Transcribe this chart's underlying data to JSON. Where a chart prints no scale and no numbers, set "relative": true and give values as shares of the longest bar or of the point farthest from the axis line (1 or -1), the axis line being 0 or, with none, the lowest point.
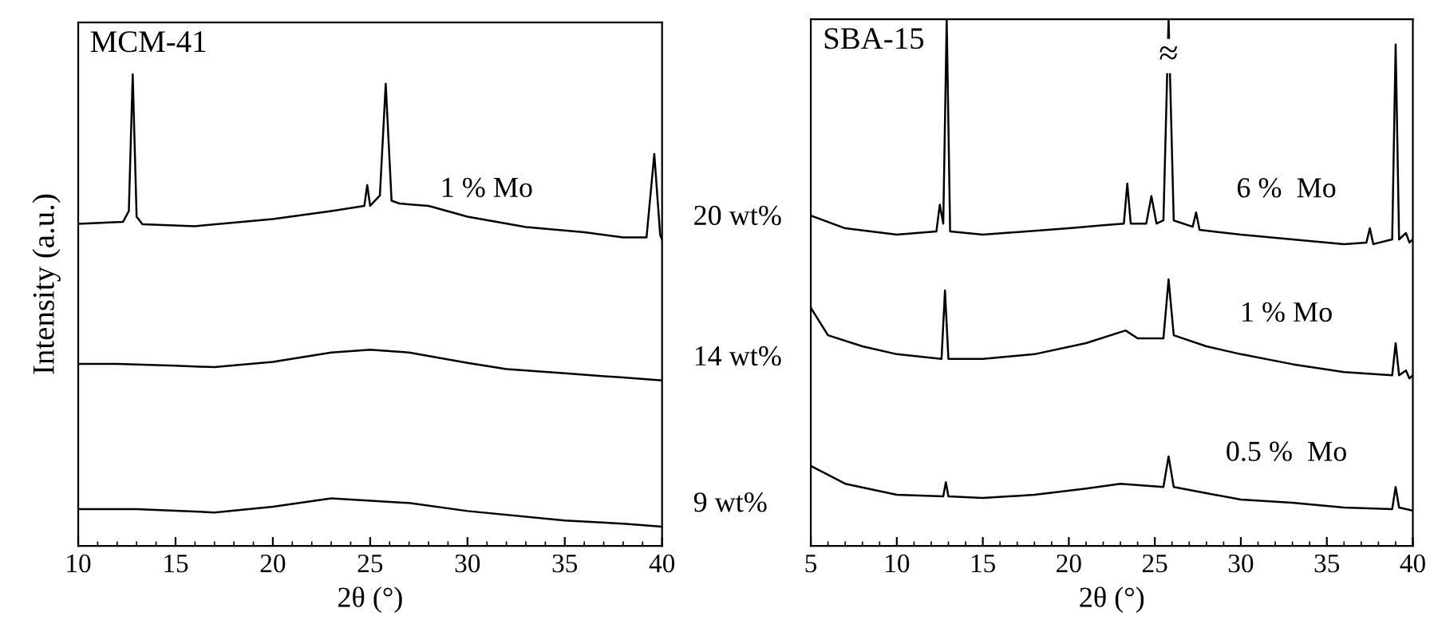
{
  "chart_data": [
    {
      "type": "line",
      "title": "MCM-41",
      "xlabel": "2θ (°)",
      "ylabel": "Intensity (a.u.)",
      "relative": true,
      "xlim": [
        10,
        40
      ],
      "xticks": [
        10,
        15,
        20,
        25,
        30,
        35,
        40
      ],
      "tick_labels": "x",
      "grid": false,
      "legend": false,
      "marker": "none",
      "line_style": "solid",
      "annotations": [
        "1 % Mo"
      ],
      "series": [
        {
          "name": "20 wt%",
          "color": "#000000",
          "x": [
            10,
            12.3,
            12.6,
            12.8,
            13.0,
            13.3,
            16,
            20,
            23,
            24.7,
            24.85,
            25.0,
            25.5,
            25.8,
            26.1,
            26.5,
            28,
            30,
            33,
            36,
            38,
            39.2,
            39.6,
            39.9,
            40
          ],
          "values": [
            0.683,
            0.687,
            0.71,
            1,
            0.698,
            0.682,
            0.678,
            0.693,
            0.71,
            0.721,
            0.765,
            0.721,
            0.743,
            0.98,
            0.732,
            0.726,
            0.721,
            0.698,
            0.676,
            0.665,
            0.654,
            0.654,
            0.831,
            0.66,
            0.649
          ]
        },
        {
          "name": "14 wt%",
          "color": "#000000",
          "x": [
            10,
            12,
            15,
            17,
            20,
            23,
            25,
            27,
            30,
            32,
            35,
            38,
            40
          ],
          "values": [
            0.386,
            0.386,
            0.382,
            0.379,
            0.39,
            0.41,
            0.416,
            0.41,
            0.388,
            0.375,
            0.366,
            0.357,
            0.351
          ]
        },
        {
          "name": "9 wt%",
          "color": "#000000",
          "x": [
            10,
            13,
            17,
            20,
            23,
            27,
            30,
            35,
            38,
            40
          ],
          "values": [
            0.078,
            0.078,
            0.071,
            0.083,
            0.101,
            0.091,
            0.074,
            0.054,
            0.047,
            0.041
          ]
        }
      ]
    },
    {
      "type": "line",
      "title": "SBA-15",
      "xlabel": "2θ (°)",
      "relative": true,
      "xlim": [
        5,
        40
      ],
      "xticks": [
        5,
        10,
        15,
        20,
        25,
        30,
        35,
        40
      ],
      "tick_labels": "x",
      "grid": false,
      "legend": false,
      "marker": "none",
      "line_style": "solid",
      "annotations": [
        {
          "text": "≈",
          "x": 25.8,
          "y": 0.93
        }
      ],
      "series": [
        {
          "name": "6 %  Mo",
          "color": "#000000",
          "x": [
            5,
            7,
            10,
            12.3,
            12.5,
            12.7,
            12.9,
            13.1,
            15,
            20,
            22,
            23.2,
            23.4,
            23.6,
            24.5,
            24.8,
            25.1,
            25.5,
            25.8,
            26.1,
            27.2,
            27.4,
            27.6,
            30,
            33,
            36,
            37.3,
            37.5,
            37.7,
            38.8,
            39.0,
            39.2,
            39.6,
            39.8,
            40
          ],
          "values": [
            0.627,
            0.603,
            0.591,
            0.597,
            0.648,
            0.612,
            1,
            0.597,
            0.591,
            0.603,
            0.609,
            0.612,
            0.688,
            0.612,
            0.612,
            0.664,
            0.612,
            0.618,
            1,
            0.618,
            0.606,
            0.633,
            0.6,
            0.591,
            0.582,
            0.573,
            0.576,
            0.603,
            0.573,
            0.582,
            0.952,
            0.582,
            0.594,
            0.576,
            0.582
          ]
        },
        {
          "name": "1 % Mo",
          "color": "#000000",
          "x": [
            5,
            6,
            8,
            10,
            12.6,
            12.8,
            13.0,
            15,
            18,
            21,
            23.3,
            24,
            25.5,
            25.8,
            26.1,
            28,
            30,
            33,
            36,
            38.8,
            39.0,
            39.2,
            39.6,
            39.8,
            40
          ],
          "values": [
            0.452,
            0.4,
            0.379,
            0.364,
            0.355,
            0.485,
            0.355,
            0.355,
            0.364,
            0.385,
            0.409,
            0.394,
            0.394,
            0.506,
            0.4,
            0.379,
            0.364,
            0.345,
            0.33,
            0.324,
            0.385,
            0.324,
            0.333,
            0.318,
            0.324
          ]
        },
        {
          "name": "0.5 %  Mo",
          "color": "#000000",
          "x": [
            5,
            7,
            10,
            12.7,
            12.85,
            13.0,
            15,
            18,
            21,
            23,
            25.5,
            25.8,
            26.1,
            28,
            30,
            33,
            36,
            38.8,
            39.0,
            39.2,
            40
          ],
          "values": [
            0.152,
            0.118,
            0.097,
            0.094,
            0.121,
            0.094,
            0.091,
            0.097,
            0.109,
            0.118,
            0.112,
            0.17,
            0.112,
            0.1,
            0.088,
            0.082,
            0.073,
            0.07,
            0.112,
            0.073,
            0.067
          ]
        }
      ]
    }
  ]
}
